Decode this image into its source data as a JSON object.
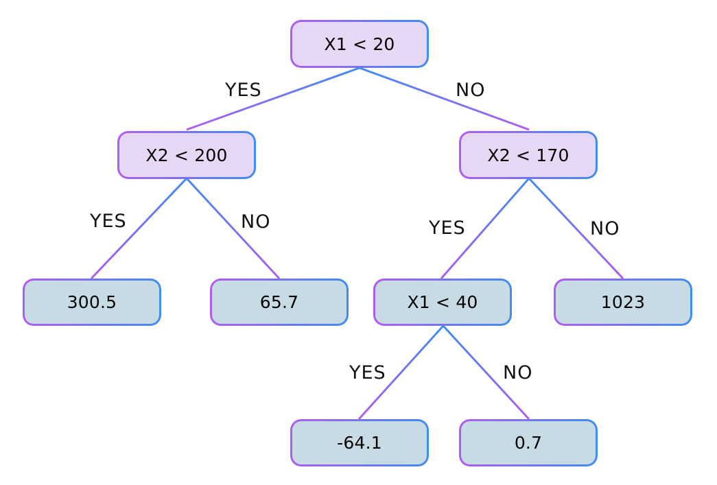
{
  "colors": {
    "decision_fill": "#e6d7f5",
    "leaf_fill": "#c6dbe4",
    "border_purple": "#b05cf0",
    "border_blue": "#3f8df0"
  },
  "nodes": {
    "root": "X1 < 20",
    "left": "X2 < 200",
    "right": "X2 < 170",
    "leaf_300": "300.5",
    "leaf_65": "65.7",
    "inner_x1": "X1 < 40",
    "leaf_1023": "1023",
    "leaf_neg64": "-64.1",
    "leaf_07": "0.7"
  },
  "labels": {
    "root_yes": "YES",
    "root_no": "NO",
    "left_yes": "YES",
    "left_no": "NO",
    "right_yes": "YES",
    "right_no": "NO",
    "inner_yes": "YES",
    "inner_no": "NO"
  }
}
